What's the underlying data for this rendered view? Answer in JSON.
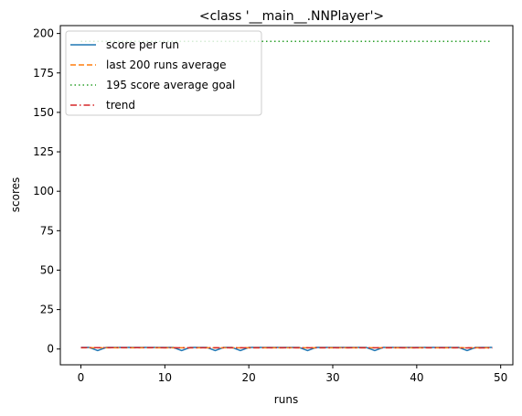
{
  "chart_data": {
    "type": "line",
    "title": "<class '__main__.NNPlayer'>",
    "xlabel": "runs",
    "ylabel": "scores",
    "xlim": [
      -2.45,
      51.45
    ],
    "ylim": [
      -10,
      205
    ],
    "xticks": [
      0,
      10,
      20,
      30,
      40,
      50
    ],
    "yticks": [
      0,
      25,
      50,
      75,
      100,
      125,
      150,
      175,
      200
    ],
    "legend_position": "top-left",
    "grid": false,
    "series": [
      {
        "name": "score per run",
        "color": "#1f77b4",
        "style": "solid",
        "x": [
          0,
          1,
          2,
          3,
          4,
          5,
          6,
          7,
          8,
          9,
          10,
          11,
          12,
          13,
          14,
          15,
          16,
          17,
          18,
          19,
          20,
          21,
          22,
          23,
          24,
          25,
          26,
          27,
          28,
          29,
          30,
          31,
          32,
          33,
          34,
          35,
          36,
          37,
          38,
          39,
          40,
          41,
          42,
          43,
          44,
          45,
          46,
          47,
          48,
          49
        ],
        "values": [
          1,
          1,
          -1,
          1,
          1,
          1,
          1,
          1,
          1,
          1,
          1,
          1,
          -1,
          1,
          1,
          1,
          -1,
          1,
          1,
          -1,
          1,
          1,
          1,
          1,
          1,
          1,
          1,
          -1,
          1,
          1,
          1,
          1,
          1,
          1,
          1,
          -1,
          1,
          1,
          1,
          1,
          1,
          1,
          1,
          1,
          1,
          1,
          -1,
          1,
          1,
          1
        ]
      },
      {
        "name": "last 200 runs average",
        "color": "#ff7f0e",
        "style": "dashed",
        "x": [
          0,
          49
        ],
        "values": [
          0.8,
          0.8
        ]
      },
      {
        "name": "195 score average goal",
        "color": "#2ca02c",
        "style": "dotted",
        "x": [
          0,
          49
        ],
        "values": [
          195,
          195
        ]
      },
      {
        "name": "trend",
        "color": "#d62728",
        "style": "dashdot",
        "x": [
          0,
          49
        ],
        "values": [
          0.85,
          0.75
        ]
      }
    ]
  }
}
